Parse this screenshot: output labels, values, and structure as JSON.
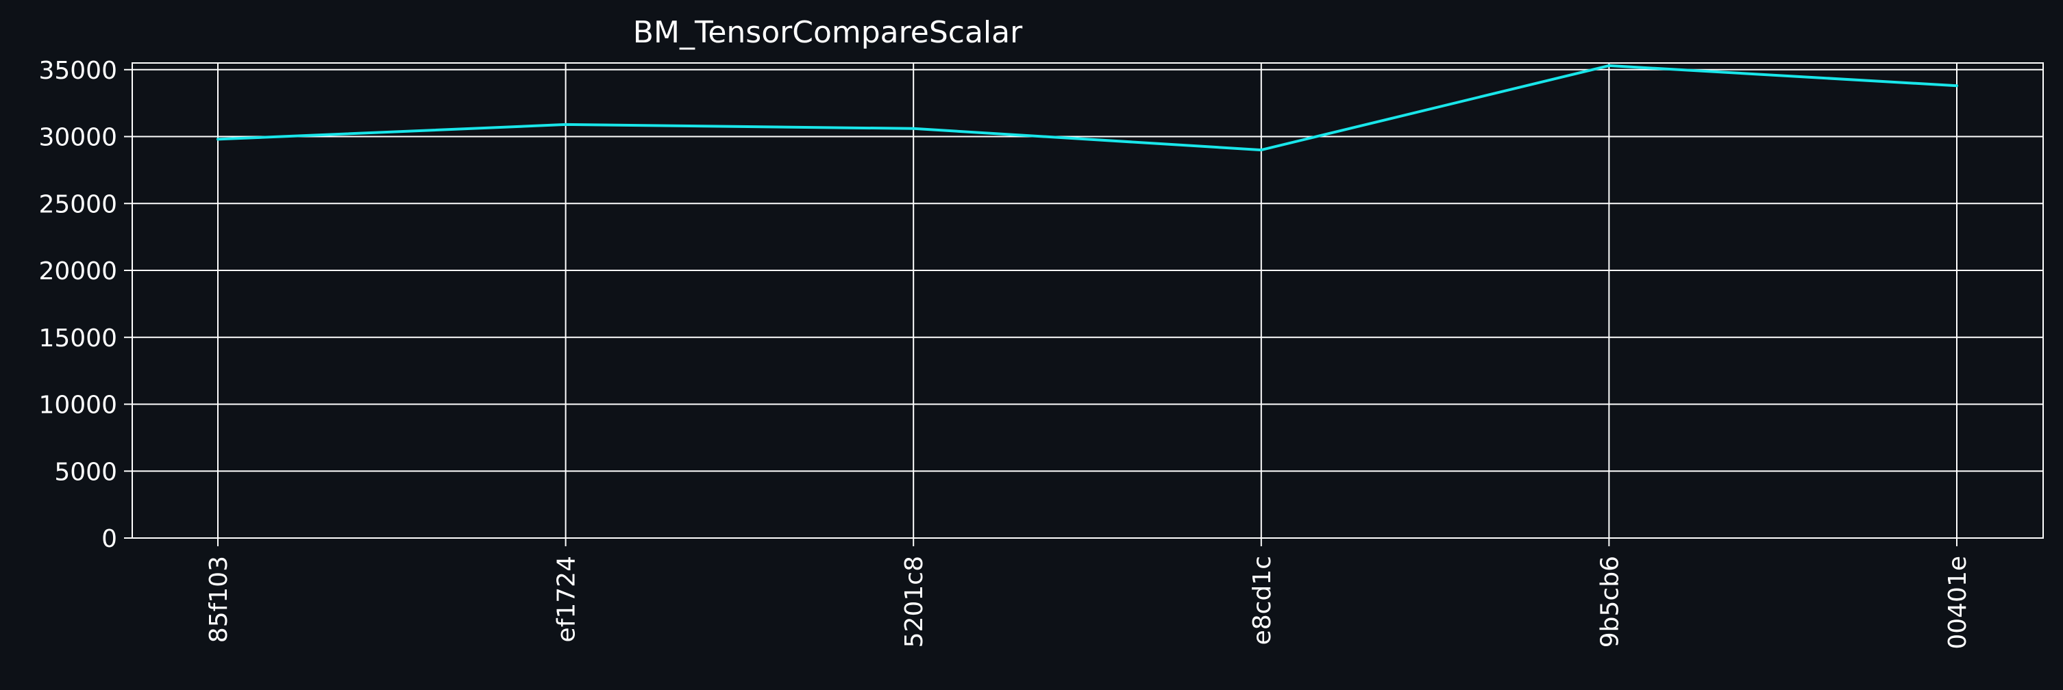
{
  "chart_data": {
    "type": "line",
    "title": "BM_TensorCompareScalar",
    "xlabel": "",
    "ylabel": "",
    "categories": [
      "85f103",
      "ef1724",
      "5201c8",
      "e8cd1c",
      "9b5cb6",
      "00401e"
    ],
    "series": [
      {
        "values": [
          29800,
          30900,
          30600,
          29000,
          35300,
          33800
        ]
      }
    ],
    "ylim": [
      0,
      35500
    ],
    "yticks": [
      0,
      5000,
      10000,
      15000,
      20000,
      25000,
      30000,
      35000
    ],
    "grid": true,
    "colors": {
      "background": "#0d1117",
      "line": "#19e6ea",
      "grid": "#ffffff",
      "text": "#ffffff"
    }
  }
}
